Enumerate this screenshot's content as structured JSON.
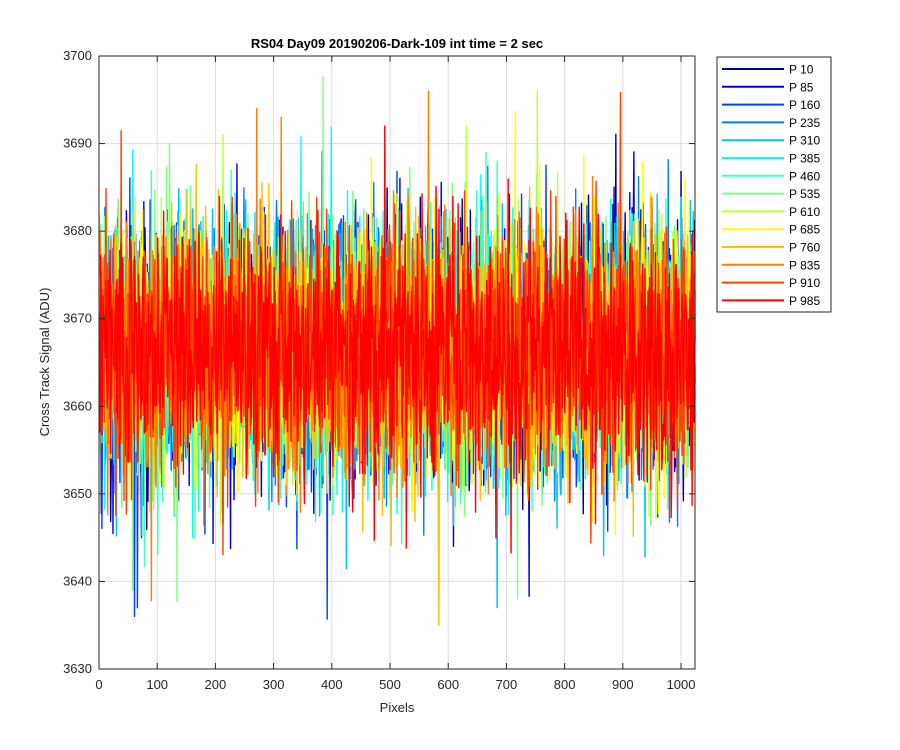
{
  "chart_data": {
    "type": "line",
    "title": "RS04 Day09 20190206-Dark-109 int time = 2 sec",
    "xlabel": "Pixels",
    "ylabel": "Cross Track Signal (ADU)",
    "xlim": [
      0,
      1024
    ],
    "ylim": [
      3630,
      3700
    ],
    "xticks": [
      0,
      100,
      200,
      300,
      400,
      500,
      600,
      700,
      800,
      900,
      1000
    ],
    "yticks": [
      3630,
      3640,
      3650,
      3660,
      3670,
      3680,
      3690,
      3700
    ],
    "grid": true,
    "legend_position": "outside-right",
    "series": [
      {
        "name": "P 10",
        "color": "#00008f"
      },
      {
        "name": "P 85",
        "color": "#0000e0"
      },
      {
        "name": "P 160",
        "color": "#0040ff"
      },
      {
        "name": "P 235",
        "color": "#0080ff"
      },
      {
        "name": "P 310",
        "color": "#00bfff"
      },
      {
        "name": "P 385",
        "color": "#00ffff"
      },
      {
        "name": "P 460",
        "color": "#40ffbf"
      },
      {
        "name": "P 535",
        "color": "#80ff80"
      },
      {
        "name": "P 610",
        "color": "#bfff40"
      },
      {
        "name": "P 685",
        "color": "#ffff00"
      },
      {
        "name": "P 760",
        "color": "#ffbf00"
      },
      {
        "name": "P 835",
        "color": "#ff8000"
      },
      {
        "name": "P 910",
        "color": "#ff4000"
      },
      {
        "name": "P 985",
        "color": "#ff0000"
      }
    ],
    "series_stats": {
      "mean": 3666.5,
      "noise_sd": 7.5
    },
    "notable_points": [
      {
        "series": "P 160",
        "x": 60,
        "y": 3636
      },
      {
        "series": "P 160",
        "x": 65,
        "y": 3637
      },
      {
        "series": "P 760",
        "x": 583,
        "y": 3635
      },
      {
        "series": "P 310",
        "x": 683,
        "y": 3637
      },
      {
        "series": "P 835",
        "x": 565,
        "y": 3696
      },
      {
        "series": "P 610",
        "x": 752,
        "y": 3696
      },
      {
        "series": "P 835",
        "x": 270,
        "y": 3694
      },
      {
        "series": "P 835",
        "x": 312,
        "y": 3693
      },
      {
        "series": "P 985",
        "x": 490,
        "y": 3692
      },
      {
        "series": "P 610",
        "x": 630,
        "y": 3692
      },
      {
        "series": "P 610",
        "x": 212,
        "y": 3691
      },
      {
        "series": "P 535",
        "x": 120,
        "y": 3690
      }
    ]
  }
}
